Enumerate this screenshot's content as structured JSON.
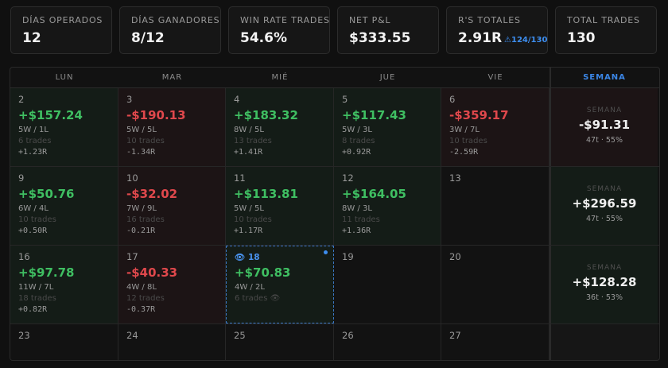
{
  "stats": [
    {
      "label": "DÍAS OPERADOS",
      "value": "12",
      "sub": ""
    },
    {
      "label": "DÍAS GANADORES",
      "value": "8/12",
      "sub": ""
    },
    {
      "label": "WIN RATE TRADES",
      "value": "54.6%",
      "sub": ""
    },
    {
      "label": "NET P&L",
      "value": "$333.55",
      "sub": ""
    },
    {
      "label": "R'S TOTALES",
      "value": "2.91R",
      "sub": "124/130"
    },
    {
      "label": "TOTAL TRADES",
      "value": "130",
      "sub": ""
    }
  ],
  "headers": [
    "LUN",
    "MAR",
    "MIÉ",
    "JUE",
    "VIE",
    "SEMANA"
  ],
  "weeks": [
    {
      "days": [
        {
          "day": "2",
          "pnl": "+$157.24",
          "wl": "5W / 1L",
          "trades": "6 trades",
          "r": "+1.23R",
          "tone": "pos"
        },
        {
          "day": "3",
          "pnl": "-$190.13",
          "wl": "5W / 5L",
          "trades": "10 trades",
          "r": "-1.34R",
          "tone": "neg"
        },
        {
          "day": "4",
          "pnl": "+$183.32",
          "wl": "8W / 5L",
          "trades": "13 trades",
          "r": "+1.41R",
          "tone": "pos"
        },
        {
          "day": "5",
          "pnl": "+$117.43",
          "wl": "5W / 3L",
          "trades": "8 trades",
          "r": "+0.92R",
          "tone": "pos"
        },
        {
          "day": "6",
          "pnl": "-$359.17",
          "wl": "3W / 7L",
          "trades": "10 trades",
          "r": "-2.59R",
          "tone": "neg"
        }
      ],
      "summary": {
        "label": "SEMANA",
        "value": "-$91.31",
        "sub": "47t · 55%",
        "tone": "neg"
      }
    },
    {
      "days": [
        {
          "day": "9",
          "pnl": "+$50.76",
          "wl": "6W / 4L",
          "trades": "10 trades",
          "r": "+0.50R",
          "tone": "pos"
        },
        {
          "day": "10",
          "pnl": "-$32.02",
          "wl": "7W / 9L",
          "trades": "16 trades",
          "r": "-0.21R",
          "tone": "neg"
        },
        {
          "day": "11",
          "pnl": "+$113.81",
          "wl": "5W / 5L",
          "trades": "10 trades",
          "r": "+1.17R",
          "tone": "pos"
        },
        {
          "day": "12",
          "pnl": "+$164.05",
          "wl": "8W / 3L",
          "trades": "11 trades",
          "r": "+1.36R",
          "tone": "pos"
        },
        {
          "day": "13",
          "pnl": "",
          "wl": "",
          "trades": "",
          "r": "",
          "tone": "empty"
        }
      ],
      "summary": {
        "label": "SEMANA",
        "value": "+$296.59",
        "sub": "47t · 55%",
        "tone": "pos"
      }
    },
    {
      "days": [
        {
          "day": "16",
          "pnl": "+$97.78",
          "wl": "11W / 7L",
          "trades": "18 trades",
          "r": "+0.82R",
          "tone": "pos"
        },
        {
          "day": "17",
          "pnl": "-$40.33",
          "wl": "4W / 8L",
          "trades": "12 trades",
          "r": "-0.37R",
          "tone": "neg"
        },
        {
          "day": "18",
          "pnl": "+$70.83",
          "wl": "4W / 2L",
          "trades": "6 trades",
          "r": "",
          "tone": "today"
        },
        {
          "day": "19",
          "pnl": "",
          "wl": "",
          "trades": "",
          "r": "",
          "tone": "empty"
        },
        {
          "day": "20",
          "pnl": "",
          "wl": "",
          "trades": "",
          "r": "",
          "tone": "empty"
        }
      ],
      "summary": {
        "label": "SEMANA",
        "value": "+$128.28",
        "sub": "36t · 53%",
        "tone": "pos"
      }
    },
    {
      "days": [
        {
          "day": "23",
          "pnl": "",
          "wl": "",
          "trades": "",
          "r": "",
          "tone": "empty"
        },
        {
          "day": "24",
          "pnl": "",
          "wl": "",
          "trades": "",
          "r": "",
          "tone": "empty"
        },
        {
          "day": "25",
          "pnl": "",
          "wl": "",
          "trades": "",
          "r": "",
          "tone": "empty"
        },
        {
          "day": "26",
          "pnl": "",
          "wl": "",
          "trades": "",
          "r": "",
          "tone": "empty"
        },
        {
          "day": "27",
          "pnl": "",
          "wl": "",
          "trades": "",
          "r": "",
          "tone": "empty"
        }
      ],
      "summary": {
        "label": "",
        "value": "",
        "sub": "",
        "tone": "blank"
      }
    }
  ],
  "colors": {
    "positive": "#3fbf62",
    "negative": "#e0484c",
    "accent": "#3d8ef0"
  },
  "icons": {
    "r_sub_icon": "warning-triangle-icon",
    "today_icon": "eye-icon",
    "trades_icon": "eye-icon"
  }
}
